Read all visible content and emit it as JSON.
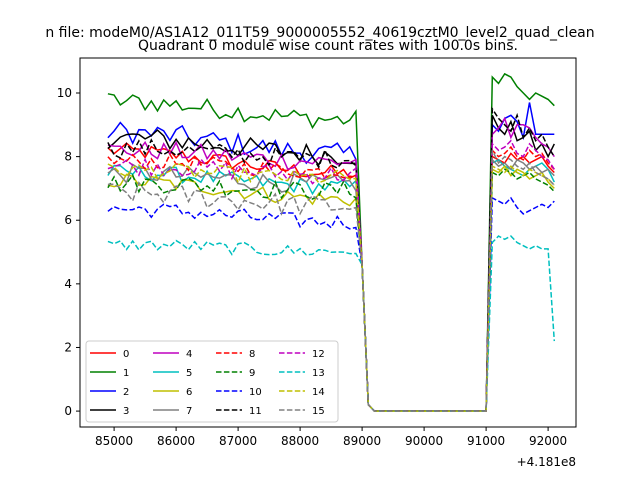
{
  "figure": {
    "suptitle": "n file: modeM0/AS1A12_011T59_9000005552_40619cztM0_level2_quad_clean",
    "title": "Quadrant 0 module wise count rates with 100.0s bins.",
    "offset_text": "+4.181e8"
  },
  "chart_data": {
    "type": "line",
    "title": "Quadrant 0 module wise count rates with 100.0s bins.",
    "xlabel": "",
    "ylabel": "",
    "x_offset": 418100000,
    "xlim": [
      84450,
      92450
    ],
    "ylim": [
      -0.5,
      11.1
    ],
    "xticks": [
      85000,
      86000,
      87000,
      88000,
      89000,
      90000,
      91000,
      92000
    ],
    "yticks": [
      0,
      2,
      4,
      6,
      8,
      10
    ],
    "grid": false,
    "legend_placement": "lower-left",
    "legend_columns": 4,
    "x_note": "x values are seconds relative to the offset +4.181e8, sampled every 100 s",
    "x_start": 84900,
    "x_step": 100,
    "series": [
      {
        "name": "0",
        "color": "#ff0000",
        "style": "solid",
        "seg1_level": 7.95,
        "seg1_end": 7.7,
        "noise": 0.25,
        "seg2": [
          8.0,
          7.9,
          7.8,
          8.1,
          7.9,
          8.0,
          7.8,
          7.9,
          8.0,
          7.7,
          7.5
        ]
      },
      {
        "name": "1",
        "color": "#008000",
        "style": "solid",
        "seg1_level": 9.5,
        "seg1_end": 9.4,
        "noise": 0.3,
        "seg2": [
          10.5,
          10.3,
          10.6,
          10.5,
          10.2,
          10.0,
          9.8,
          10.0,
          9.9,
          9.8,
          9.6
        ]
      },
      {
        "name": "2",
        "color": "#0000ff",
        "style": "solid",
        "seg1_level": 8.55,
        "seg1_end": 8.3,
        "noise": 0.35,
        "seg2": [
          9.0,
          8.8,
          9.2,
          9.3,
          9.1,
          8.6,
          9.7,
          8.7,
          8.7,
          8.7,
          8.7
        ]
      },
      {
        "name": "3",
        "color": "#000000",
        "style": "solid",
        "seg1_level": 8.35,
        "seg1_end": 8.3,
        "noise": 0.35,
        "seg2": [
          9.3,
          8.9,
          8.7,
          9.1,
          8.5,
          8.6,
          8.8,
          8.2,
          8.4,
          8.0,
          8.4
        ]
      },
      {
        "name": "4",
        "color": "#bf00bf",
        "style": "solid",
        "seg1_level": 7.95,
        "seg1_end": 8.1,
        "noise": 0.3,
        "seg2": [
          8.7,
          8.9,
          9.2,
          8.6,
          9.0,
          9.0,
          8.9,
          8.6,
          8.4,
          8.3,
          8.0
        ]
      },
      {
        "name": "5",
        "color": "#00bfbf",
        "style": "solid",
        "seg1_level": 7.25,
        "seg1_end": 7.3,
        "noise": 0.25,
        "seg2": [
          7.8,
          7.9,
          7.7,
          7.6,
          7.5,
          7.4,
          7.6,
          7.7,
          7.8,
          7.6,
          7.2
        ]
      },
      {
        "name": "6",
        "color": "#bfbf00",
        "style": "solid",
        "seg1_level": 7.0,
        "seg1_end": 6.9,
        "noise": 0.25,
        "seg2": [
          7.6,
          7.5,
          7.7,
          7.4,
          7.6,
          7.5,
          7.3,
          7.4,
          7.5,
          7.2,
          7.0
        ]
      },
      {
        "name": "7",
        "color": "#808080",
        "style": "solid",
        "seg1_level": 7.2,
        "seg1_end": 7.4,
        "noise": 0.3,
        "seg2": [
          7.9,
          7.7,
          7.8,
          7.6,
          7.9,
          7.8,
          7.6,
          7.7,
          7.5,
          7.6,
          7.4
        ]
      },
      {
        "name": "8",
        "color": "#ff0000",
        "style": "dashed",
        "seg1_level": 7.6,
        "seg1_end": 7.8,
        "noise": 0.25,
        "seg2": [
          8.2,
          8.0,
          8.1,
          8.3,
          8.0,
          7.9,
          8.2,
          8.0,
          8.1,
          7.8,
          7.6
        ]
      },
      {
        "name": "9",
        "color": "#008000",
        "style": "dashed",
        "seg1_level": 6.9,
        "seg1_end": 7.2,
        "noise": 0.3,
        "seg2": [
          7.5,
          7.4,
          7.6,
          7.5,
          7.3,
          7.4,
          7.5,
          7.3,
          7.2,
          7.1,
          6.9
        ]
      },
      {
        "name": "10",
        "color": "#0000ff",
        "style": "dashed",
        "seg1_level": 6.1,
        "seg1_end": 6.2,
        "noise": 0.25,
        "seg2": [
          6.7,
          6.6,
          6.5,
          6.7,
          6.4,
          6.2,
          6.3,
          6.4,
          6.5,
          6.4,
          6.6
        ]
      },
      {
        "name": "11",
        "color": "#000000",
        "style": "dashed",
        "seg1_level": 8.0,
        "seg1_end": 8.2,
        "noise": 0.3,
        "seg2": [
          9.5,
          9.2,
          9.0,
          8.8,
          9.3,
          8.6,
          8.9,
          8.5,
          8.7,
          8.3,
          8.0
        ]
      },
      {
        "name": "12",
        "color": "#bf00bf",
        "style": "dashed",
        "seg1_level": 7.45,
        "seg1_end": 7.7,
        "noise": 0.3,
        "seg2": [
          8.4,
          8.2,
          8.3,
          8.5,
          8.1,
          8.0,
          8.4,
          8.2,
          8.0,
          7.9,
          7.6
        ]
      },
      {
        "name": "13",
        "color": "#00bfbf",
        "style": "dashed",
        "seg1_level": 4.95,
        "seg1_end": 5.3,
        "noise": 0.2,
        "seg2": [
          5.3,
          5.5,
          5.4,
          5.5,
          5.3,
          5.2,
          5.1,
          5.2,
          5.1,
          5.1,
          2.2
        ]
      },
      {
        "name": "14",
        "color": "#bfbf00",
        "style": "dashed",
        "seg1_level": 7.3,
        "seg1_end": 7.6,
        "noise": 0.25,
        "seg2": [
          7.7,
          7.6,
          7.5,
          7.7,
          7.5,
          7.4,
          7.6,
          7.5,
          7.4,
          7.3,
          7.1
        ]
      },
      {
        "name": "15",
        "color": "#808080",
        "style": "dashed",
        "seg1_level": 6.6,
        "seg1_end": 6.7,
        "noise": 0.35,
        "seg2": [
          8.2,
          7.8,
          8.0,
          7.9,
          7.7,
          7.6,
          7.8,
          7.5,
          7.4,
          7.3,
          7.1
        ]
      }
    ]
  }
}
